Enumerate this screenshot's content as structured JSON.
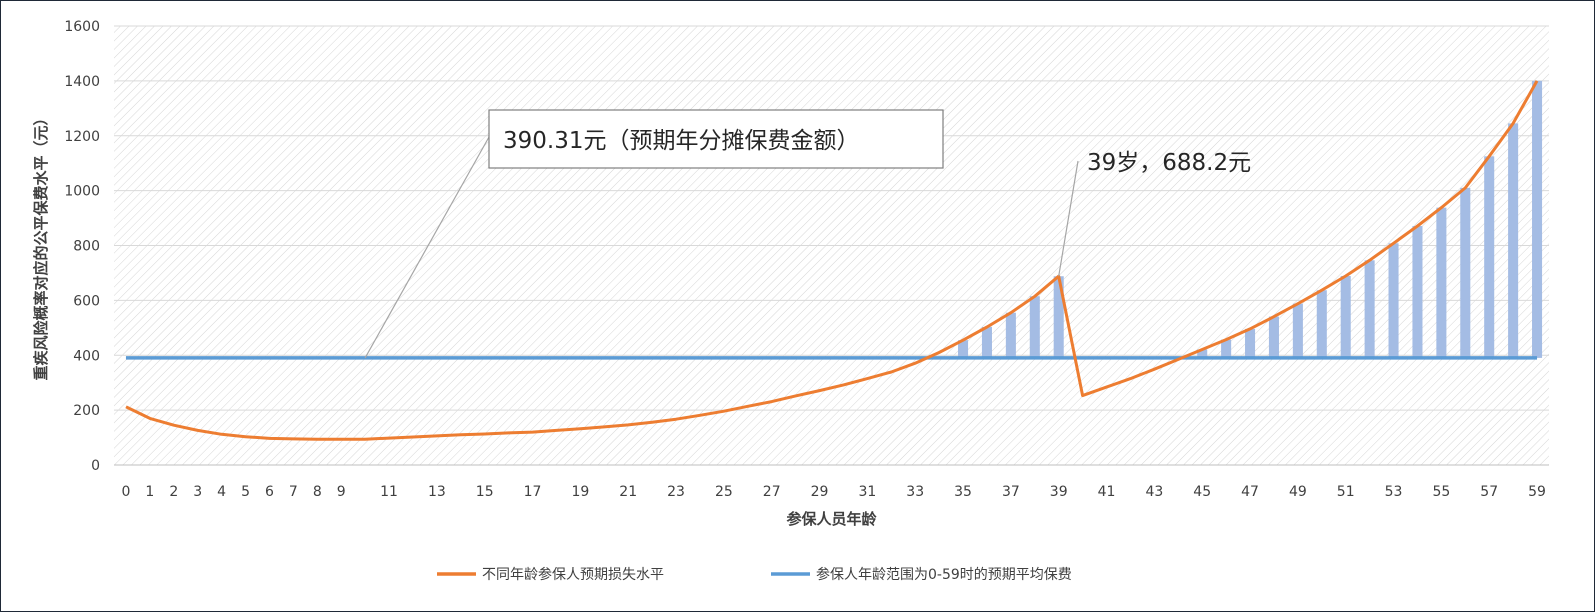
{
  "chart_data": {
    "type": "line",
    "xlabel": "参保人员年龄",
    "ylabel": "重疾风险概率对应的公平保费水平（元）",
    "ylim": [
      0,
      1600
    ],
    "yticks": [
      0,
      200,
      400,
      600,
      800,
      1000,
      1200,
      1400,
      1600
    ],
    "x_tick_labels": [
      "0",
      "1",
      "2",
      "3",
      "4",
      "5",
      "6",
      "7",
      "8",
      "9",
      "11",
      "13",
      "15",
      "17",
      "19",
      "21",
      "23",
      "25",
      "27",
      "29",
      "31",
      "33",
      "35",
      "37",
      "39",
      "41",
      "43",
      "45",
      "47",
      "49",
      "51",
      "53",
      "55",
      "57",
      "59"
    ],
    "grid": "hatched plot background",
    "legend_position": "bottom",
    "series": [
      {
        "name": "不同年龄参保人预期损失水平",
        "color": "#ED7D31",
        "kind": "line",
        "x": [
          0,
          1,
          2,
          3,
          4,
          5,
          6,
          7,
          8,
          9,
          10,
          11,
          12,
          13,
          14,
          15,
          16,
          17,
          18,
          19,
          20,
          21,
          22,
          23,
          24,
          25,
          26,
          27,
          28,
          29,
          30,
          31,
          32,
          33,
          34,
          35,
          36,
          37,
          38,
          39,
          40,
          41,
          42,
          43,
          44,
          45,
          46,
          47,
          48,
          49,
          50,
          51,
          52,
          53,
          54,
          55,
          56,
          57,
          58,
          59
        ],
        "values": [
          212,
          170,
          145,
          126,
          112,
          103,
          97,
          95,
          94,
          94,
          94,
          98,
          102,
          106,
          110,
          113,
          117,
          120,
          126,
          132,
          139,
          146,
          156,
          167,
          181,
          196,
          214,
          231,
          252,
          271,
          292,
          315,
          339,
          371,
          410,
          455,
          503,
          555,
          615,
          688,
          253,
          284,
          315,
          349,
          385,
          421,
          457,
          496,
          541,
          588,
          637,
          689,
          746,
          808,
          871,
          938,
          1010,
          1125,
          1245,
          1400
        ]
      },
      {
        "name": "参保人年龄范围为0-59时的预期平均保费",
        "color": "#5B9BD5",
        "kind": "line",
        "x": [
          0,
          59
        ],
        "values": [
          390.31,
          390.31
        ]
      },
      {
        "kind": "bars",
        "color": "#A4BCE4",
        "description_source": "shaded gap above average premium",
        "x": [
          35,
          36,
          37,
          38,
          39,
          45,
          46,
          47,
          48,
          49,
          50,
          51,
          52,
          53,
          54,
          55,
          56,
          57,
          58,
          59
        ],
        "values": [
          455,
          503,
          555,
          615,
          688,
          421,
          457,
          496,
          541,
          588,
          637,
          689,
          746,
          808,
          871,
          938,
          1010,
          1125,
          1245,
          1400
        ]
      }
    ],
    "annotations": [
      {
        "text": "390.31元（预期年分摊保费金额）",
        "x": 10,
        "y": 390.31,
        "boxed": true
      },
      {
        "text": "39岁，688.2元",
        "x": 39,
        "y": 688.2,
        "boxed": false
      }
    ]
  }
}
